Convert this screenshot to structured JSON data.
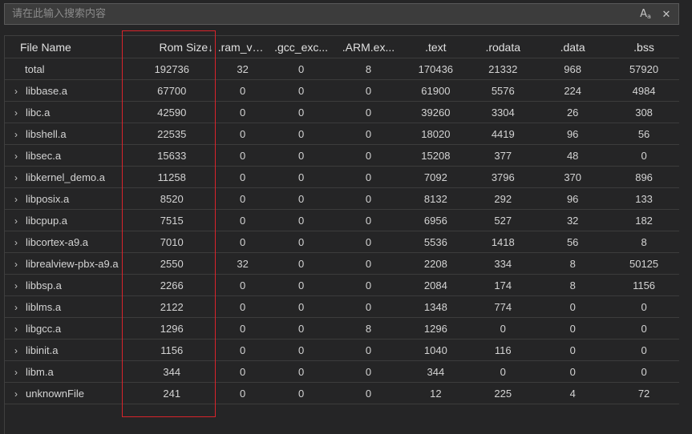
{
  "search": {
    "placeholder": "请在此输入搜索内容"
  },
  "icons": {
    "case": "match-case-icon",
    "clear": "close-icon"
  },
  "colors": {
    "highlight": "#d9242b",
    "background": "#252526"
  },
  "table": {
    "headers": {
      "name": "File Name",
      "rom": "Rom Size",
      "rom_sort": "↓",
      "ram": ".ram_ve...",
      "gcc": ".gcc_exc...",
      "arm": ".ARM.ex...",
      "text": ".text",
      "rodata": ".rodata",
      "data": ".data",
      "bss": ".bss"
    },
    "total": {
      "name": "total",
      "rom": "192736",
      "ram": "32",
      "gcc": "0",
      "arm": "8",
      "text": "170436",
      "rodata": "21332",
      "data": "968",
      "bss": "57920"
    },
    "rows": [
      {
        "name": "libbase.a",
        "rom": "67700",
        "ram": "0",
        "gcc": "0",
        "arm": "0",
        "text": "61900",
        "rodata": "5576",
        "data": "224",
        "bss": "4984"
      },
      {
        "name": "libc.a",
        "rom": "42590",
        "ram": "0",
        "gcc": "0",
        "arm": "0",
        "text": "39260",
        "rodata": "3304",
        "data": "26",
        "bss": "308"
      },
      {
        "name": "libshell.a",
        "rom": "22535",
        "ram": "0",
        "gcc": "0",
        "arm": "0",
        "text": "18020",
        "rodata": "4419",
        "data": "96",
        "bss": "56"
      },
      {
        "name": "libsec.a",
        "rom": "15633",
        "ram": "0",
        "gcc": "0",
        "arm": "0",
        "text": "15208",
        "rodata": "377",
        "data": "48",
        "bss": "0"
      },
      {
        "name": "libkernel_demo.a",
        "rom": "11258",
        "ram": "0",
        "gcc": "0",
        "arm": "0",
        "text": "7092",
        "rodata": "3796",
        "data": "370",
        "bss": "896"
      },
      {
        "name": "libposix.a",
        "rom": "8520",
        "ram": "0",
        "gcc": "0",
        "arm": "0",
        "text": "8132",
        "rodata": "292",
        "data": "96",
        "bss": "133"
      },
      {
        "name": "libcpup.a",
        "rom": "7515",
        "ram": "0",
        "gcc": "0",
        "arm": "0",
        "text": "6956",
        "rodata": "527",
        "data": "32",
        "bss": "182"
      },
      {
        "name": "libcortex-a9.a",
        "rom": "7010",
        "ram": "0",
        "gcc": "0",
        "arm": "0",
        "text": "5536",
        "rodata": "1418",
        "data": "56",
        "bss": "8"
      },
      {
        "name": "librealview-pbx-a9.a",
        "rom": "2550",
        "ram": "32",
        "gcc": "0",
        "arm": "0",
        "text": "2208",
        "rodata": "334",
        "data": "8",
        "bss": "50125"
      },
      {
        "name": "libbsp.a",
        "rom": "2266",
        "ram": "0",
        "gcc": "0",
        "arm": "0",
        "text": "2084",
        "rodata": "174",
        "data": "8",
        "bss": "1156"
      },
      {
        "name": "liblms.a",
        "rom": "2122",
        "ram": "0",
        "gcc": "0",
        "arm": "0",
        "text": "1348",
        "rodata": "774",
        "data": "0",
        "bss": "0"
      },
      {
        "name": "libgcc.a",
        "rom": "1296",
        "ram": "0",
        "gcc": "0",
        "arm": "8",
        "text": "1296",
        "rodata": "0",
        "data": "0",
        "bss": "0"
      },
      {
        "name": "libinit.a",
        "rom": "1156",
        "ram": "0",
        "gcc": "0",
        "arm": "0",
        "text": "1040",
        "rodata": "116",
        "data": "0",
        "bss": "0"
      },
      {
        "name": "libm.a",
        "rom": "344",
        "ram": "0",
        "gcc": "0",
        "arm": "0",
        "text": "344",
        "rodata": "0",
        "data": "0",
        "bss": "0"
      },
      {
        "name": "unknownFile",
        "rom": "241",
        "ram": "0",
        "gcc": "0",
        "arm": "0",
        "text": "12",
        "rodata": "225",
        "data": "4",
        "bss": "72"
      }
    ]
  }
}
